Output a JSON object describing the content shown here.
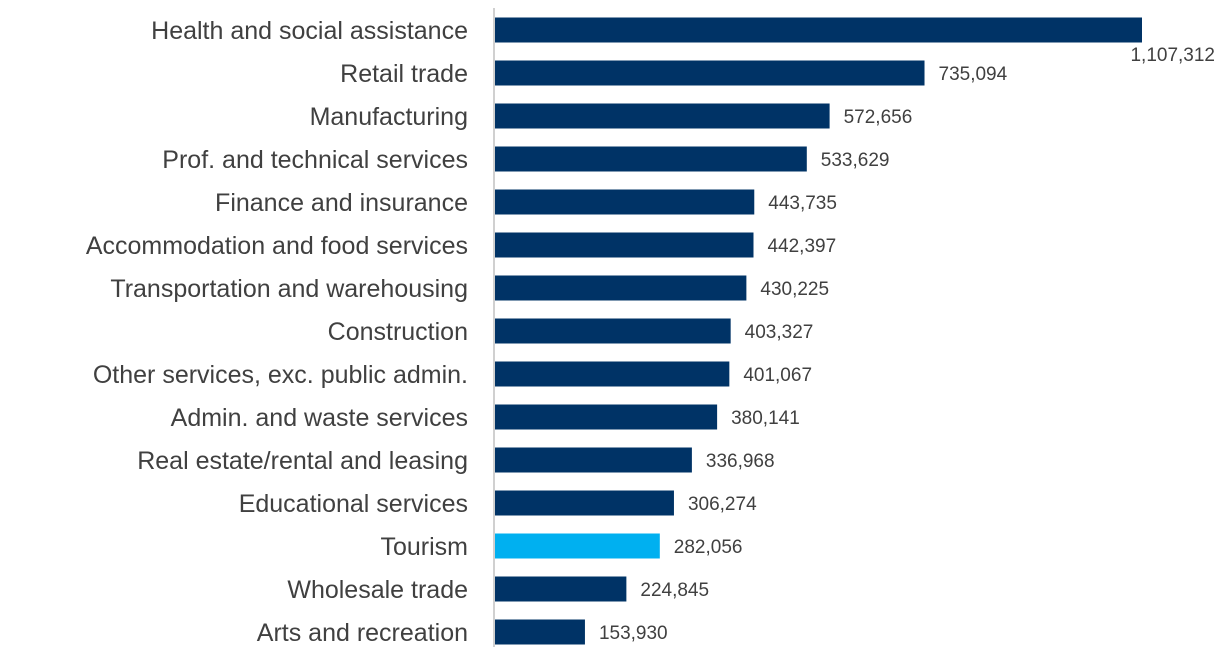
{
  "chart_data": {
    "type": "bar",
    "orientation": "horizontal",
    "categories": [
      "Health and social assistance",
      "Retail trade",
      "Manufacturing",
      "Prof. and technical services",
      "Finance and insurance",
      "Accommodation and food services",
      "Transportation and warehousing",
      "Construction",
      "Other services, exc. public admin.",
      "Admin. and waste services",
      "Real estate/rental and leasing",
      "Educational services",
      "Tourism",
      "Wholesale trade",
      "Arts and recreation"
    ],
    "values": [
      1107312,
      735094,
      572656,
      533629,
      443735,
      442397,
      430225,
      403327,
      401067,
      380141,
      336968,
      306274,
      282056,
      224845,
      153930
    ],
    "value_labels": [
      "1,107,312",
      "735,094",
      "572,656",
      "533,629",
      "443,735",
      "442,397",
      "430,225",
      "403,327",
      "401,067",
      "380,141",
      "336,968",
      "306,274",
      "282,056",
      "224,845",
      "153,930"
    ],
    "highlight_category": "Tourism",
    "colors": {
      "default_bar": "#003366",
      "highlight_bar": "#00b0f0",
      "axis": "#c0c0c0",
      "text": "#404040"
    },
    "title": "",
    "xlabel": "",
    "ylabel": "",
    "xlim": [
      0,
      1107312
    ],
    "grid": false,
    "legend": "none"
  }
}
